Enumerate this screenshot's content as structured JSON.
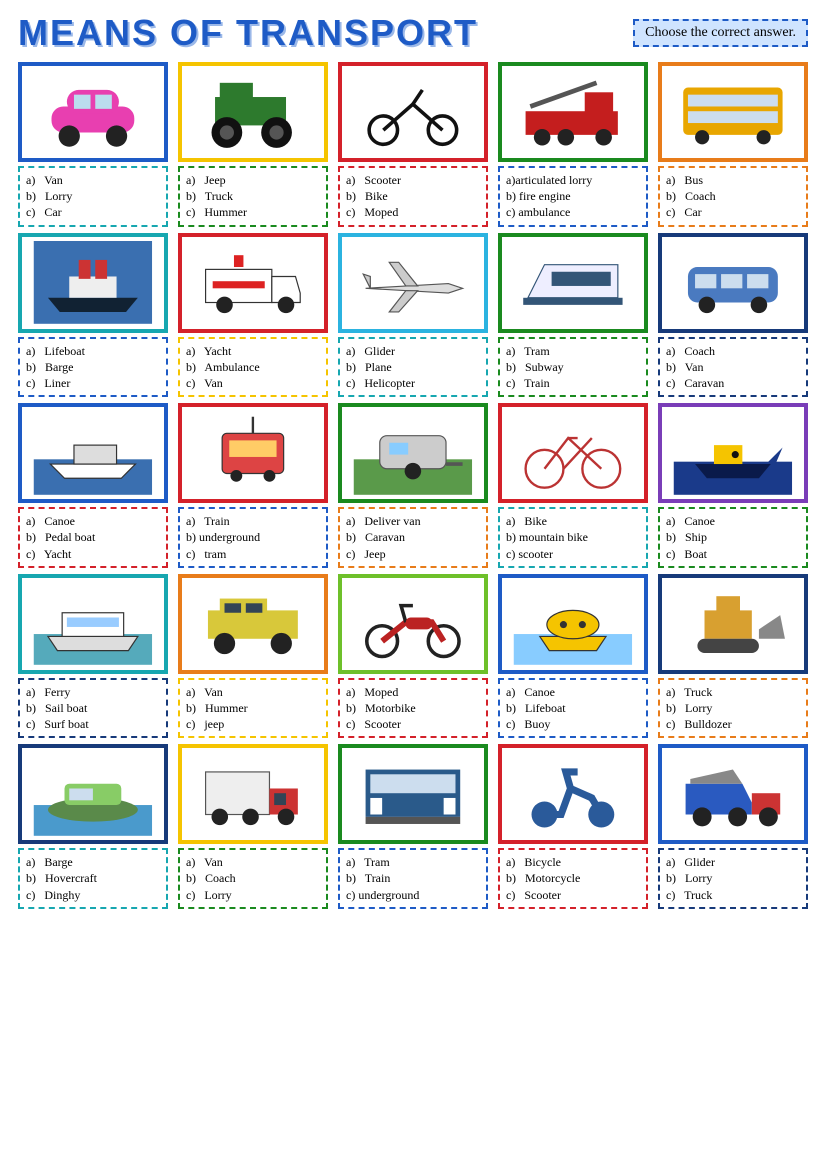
{
  "title": "MEANS OF TRANSPORT",
  "instruction": "Choose the correct answer.",
  "title_color": "#1e5bc6",
  "colors": {
    "blue": "#1e5bc6",
    "yellow": "#f5c400",
    "red": "#d4212a",
    "green": "#1a8a1f",
    "orange": "#e87c1a",
    "teal": "#17a7b0",
    "purple": "#7a3db8",
    "navy": "#173a7a",
    "cyan": "#2bb3e0",
    "lime": "#6ec02a"
  },
  "items": [
    {
      "icon": "car",
      "pic_color": "blue",
      "ans_color": "teal",
      "options": [
        "a)   Van",
        "b)   Lorry",
        "c)   Car"
      ]
    },
    {
      "icon": "jeep",
      "pic_color": "yellow",
      "ans_color": "green",
      "options": [
        "a)   Jeep",
        "b)   Truck",
        "c)   Hummer"
      ]
    },
    {
      "icon": "moped",
      "pic_color": "red",
      "ans_color": "red",
      "options": [
        "a)   Scooter",
        "b)   Bike",
        "c)   Moped"
      ]
    },
    {
      "icon": "firetruck",
      "pic_color": "green",
      "ans_color": "blue",
      "options": [
        "a)articulated lorry",
        "b) fire engine",
        "c) ambulance"
      ]
    },
    {
      "icon": "bus",
      "pic_color": "orange",
      "ans_color": "orange",
      "options": [
        "a)   Bus",
        "b)   Coach",
        "c)   Car"
      ]
    },
    {
      "icon": "liner",
      "pic_color": "teal",
      "ans_color": "blue",
      "options": [
        "a)   Lifeboat",
        "b)   Barge",
        "c)   Liner"
      ]
    },
    {
      "icon": "ambulance",
      "pic_color": "red",
      "ans_color": "yellow",
      "options": [
        "a)   Yacht",
        "b)   Ambulance",
        "c)   Van"
      ]
    },
    {
      "icon": "plane",
      "pic_color": "cyan",
      "ans_color": "teal",
      "options": [
        "a)   Glider",
        "b)   Plane",
        "c)   Helicopter"
      ]
    },
    {
      "icon": "train",
      "pic_color": "green",
      "ans_color": "green",
      "options": [
        "a)   Tram",
        "b)   Subway",
        "c)   Train"
      ]
    },
    {
      "icon": "van",
      "pic_color": "navy",
      "ans_color": "navy",
      "options": [
        "a)   Coach",
        "b)   Van",
        "c)   Caravan"
      ]
    },
    {
      "icon": "yacht",
      "pic_color": "blue",
      "ans_color": "red",
      "options": [
        "a)   Canoe",
        "b)   Pedal boat",
        "c)   Yacht"
      ]
    },
    {
      "icon": "tram",
      "pic_color": "red",
      "ans_color": "blue",
      "options": [
        "a)   Train",
        "b) underground",
        "c)   tram"
      ]
    },
    {
      "icon": "caravan",
      "pic_color": "green",
      "ans_color": "orange",
      "options": [
        "a)   Deliver van",
        "b)   Caravan",
        "c)   Jeep"
      ]
    },
    {
      "icon": "bike",
      "pic_color": "red",
      "ans_color": "teal",
      "options": [
        "a)   Bike",
        "b) mountain bike",
        "c) scooter"
      ]
    },
    {
      "icon": "ship",
      "pic_color": "purple",
      "ans_color": "green",
      "options": [
        "a)   Canoe",
        "b)   Ship",
        "c)   Boat"
      ]
    },
    {
      "icon": "ferry",
      "pic_color": "teal",
      "ans_color": "navy",
      "options": [
        "a)   Ferry",
        "b)   Sail boat",
        "c)   Surf boat"
      ]
    },
    {
      "icon": "hummer",
      "pic_color": "orange",
      "ans_color": "yellow",
      "options": [
        "a)   Van",
        "b)   Hummer",
        "c)   jeep"
      ]
    },
    {
      "icon": "motorbike",
      "pic_color": "lime",
      "ans_color": "red",
      "options": [
        "a)   Moped",
        "b)   Motorbike",
        "c)   Scooter"
      ]
    },
    {
      "icon": "buoy",
      "pic_color": "blue",
      "ans_color": "blue",
      "options": [
        "a)   Canoe",
        "b)   Lifeboat",
        "c)   Buoy"
      ]
    },
    {
      "icon": "bulldozer",
      "pic_color": "navy",
      "ans_color": "orange",
      "options": [
        "a)   Truck",
        "b)   Lorry",
        "c)   Bulldozer"
      ]
    },
    {
      "icon": "hovercraft",
      "pic_color": "navy",
      "ans_color": "teal",
      "options": [
        "a)   Barge",
        "b)   Hovercraft",
        "c)   Dinghy"
      ]
    },
    {
      "icon": "lorry",
      "pic_color": "yellow",
      "ans_color": "green",
      "options": [
        "a)   Van",
        "b)   Coach",
        "c)   Lorry"
      ]
    },
    {
      "icon": "underground",
      "pic_color": "green",
      "ans_color": "blue",
      "options": [
        "a)   Tram",
        "b)   Train",
        "c) underground"
      ]
    },
    {
      "icon": "scooter",
      "pic_color": "red",
      "ans_color": "red",
      "options": [
        "a)   Bicycle",
        "b)   Motorcycle",
        "c)   Scooter"
      ]
    },
    {
      "icon": "truck",
      "pic_color": "blue",
      "ans_color": "navy",
      "options": [
        "a)   Glider",
        "b)   Lorry",
        "c)   Truck"
      ]
    }
  ]
}
